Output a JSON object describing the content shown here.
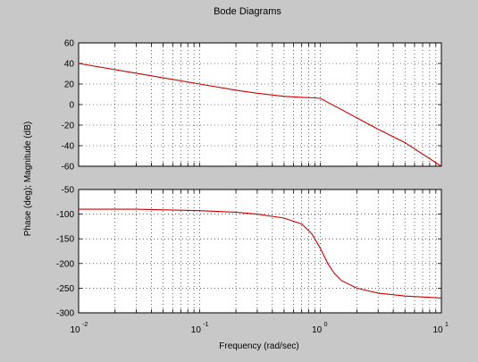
{
  "chart_data": [
    {
      "type": "line",
      "title": "Bode Diagrams",
      "xlabel": "Frequency (rad/sec)",
      "ylabel": "Phase (deg); Magnitude (dB)",
      "xscale": "log",
      "xlim": [
        0.01,
        10
      ],
      "ylim": [
        -60,
        60
      ],
      "yticks": [
        -60,
        -40,
        -20,
        0,
        20,
        40,
        60
      ],
      "grid": true,
      "line_color": "#cc0000",
      "series": [
        {
          "x": [
            0.01,
            0.02,
            0.05,
            0.1,
            0.2,
            0.3,
            0.5,
            0.7,
            0.9,
            1.0,
            1.2,
            1.5,
            2,
            3,
            5,
            10
          ],
          "values": [
            40,
            34,
            26,
            20,
            14,
            11,
            8,
            7,
            6.5,
            6,
            1,
            -5,
            -13,
            -24,
            -37,
            -60
          ]
        }
      ]
    },
    {
      "type": "line",
      "xscale": "log",
      "xlim": [
        0.01,
        10
      ],
      "ylim": [
        -300,
        -50
      ],
      "yticks": [
        -300,
        -250,
        -200,
        -150,
        -100,
        -50
      ],
      "xticks": [
        {
          "base": "10",
          "exp": "-2"
        },
        {
          "base": "10",
          "exp": "-1"
        },
        {
          "base": "10",
          "exp": "0"
        },
        {
          "base": "10",
          "exp": "1"
        }
      ],
      "grid": true,
      "line_color": "#cc0000",
      "series": [
        {
          "x": [
            0.01,
            0.03,
            0.1,
            0.2,
            0.3,
            0.5,
            0.7,
            0.85,
            1.0,
            1.15,
            1.3,
            1.5,
            2,
            3,
            5,
            10
          ],
          "values": [
            -90,
            -90,
            -93,
            -96,
            -100,
            -108,
            -120,
            -140,
            -170,
            -200,
            -220,
            -235,
            -250,
            -260,
            -266,
            -270
          ]
        }
      ]
    }
  ]
}
